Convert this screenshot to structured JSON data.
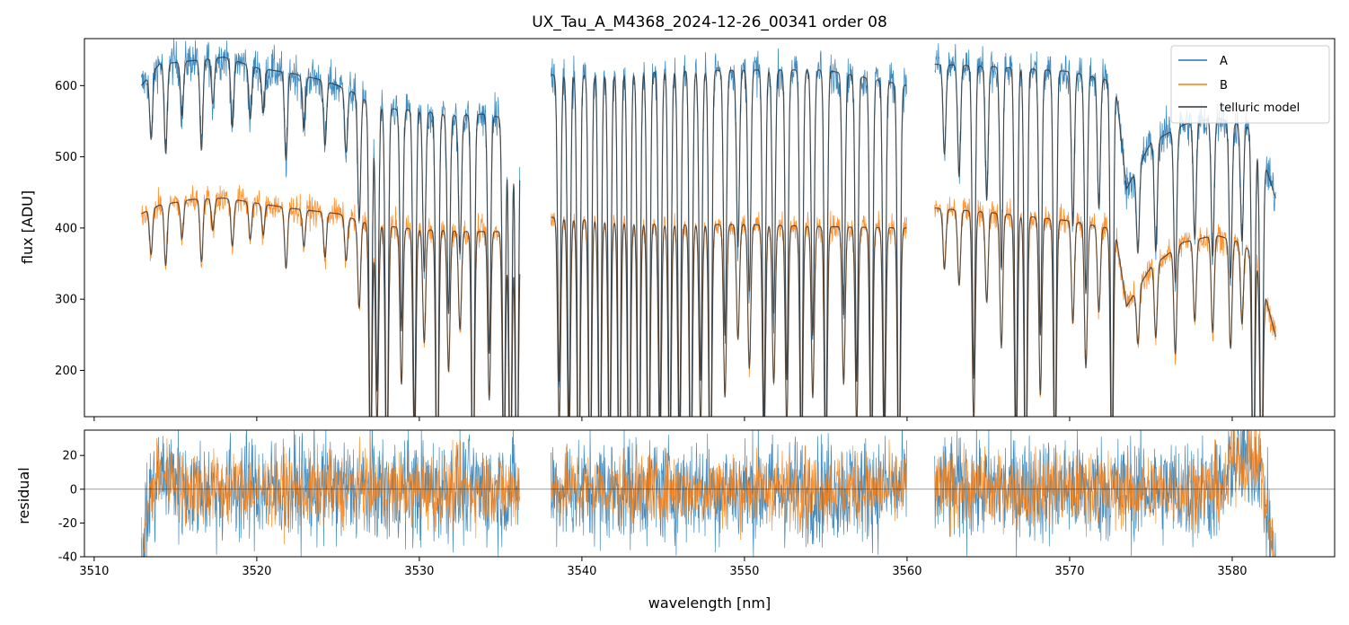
{
  "title": "UX_Tau_A_M4368_2024-12-26_00341  order 08",
  "colors": {
    "A": "#1f77b4",
    "B": "#ff7f0e",
    "telluric": "#333333"
  },
  "chart_data": [
    {
      "type": "line",
      "panel": "top",
      "title": "UX_Tau_A_M4368_2024-12-26_00341  order 08",
      "xlabel": "",
      "ylabel": "flux [ADU]",
      "xlim": [
        3509.4,
        3586.3
      ],
      "ylim": [
        135,
        666
      ],
      "xticks": [
        3510,
        3520,
        3530,
        3540,
        3550,
        3560,
        3570,
        3580
      ],
      "yticks": [
        200,
        300,
        400,
        500,
        600
      ],
      "x_start": 3512.9,
      "x_end": 3582.7,
      "gaps": [
        [
          3536.2,
          3538.1
        ],
        [
          3560.0,
          3561.7
        ]
      ],
      "legend_position": "top-right",
      "series": [
        {
          "name": "A",
          "color": "#1f77b4",
          "continuum_x": [
            3512.9,
            3514,
            3516,
            3518,
            3520,
            3522,
            3524,
            3525,
            3526,
            3527,
            3528,
            3530,
            3532,
            3534,
            3536.2,
            3538.1,
            3540,
            3545,
            3550,
            3555,
            3560,
            3561.7,
            3565,
            3570,
            3572.8,
            3573.5,
            3575,
            3577,
            3579,
            3580.5,
            3581.2,
            3582,
            3582.7
          ],
          "continuum_y": [
            600,
            630,
            635,
            640,
            625,
            618,
            608,
            600,
            590,
            575,
            568,
            565,
            558,
            560,
            550,
            615,
            615,
            620,
            622,
            622,
            600,
            630,
            627,
            620,
            605,
            455,
            520,
            545,
            555,
            545,
            540,
            490,
            440
          ],
          "noise": 15
        },
        {
          "name": "B",
          "color": "#ff7f0e",
          "continuum_x": [
            3512.9,
            3514,
            3516,
            3518,
            3520,
            3522,
            3525,
            3527,
            3530,
            3533,
            3536.2,
            3538.1,
            3545,
            3550,
            3555,
            3560,
            3561.7,
            3565,
            3570,
            3572.8,
            3573.5,
            3575,
            3577,
            3579,
            3580.5,
            3581.5,
            3582.2,
            3582.7
          ],
          "continuum_y": [
            420,
            432,
            440,
            442,
            435,
            428,
            420,
            405,
            398,
            395,
            395,
            415,
            405,
            405,
            402,
            400,
            428,
            422,
            410,
            398,
            290,
            345,
            380,
            390,
            380,
            360,
            290,
            245
          ],
          "noise": 10
        },
        {
          "name": "telluric model",
          "color": "#333333",
          "linewidth": 1.2,
          "absorption_lines_nm": [
            3513.5,
            3514.4,
            3515.4,
            3516.6,
            3517.3,
            3518.5,
            3519.6,
            3520.4,
            3521.8,
            3522.9,
            3524.2,
            3525.5,
            3526.3,
            3527.0,
            3527.4,
            3528.0,
            3528.9,
            3529.7,
            3530.3,
            3531.1,
            3531.8,
            3532.5,
            3533.3,
            3534.3,
            3535.2,
            3535.6,
            3536.0,
            3538.6,
            3539.2,
            3539.8,
            3540.5,
            3541.1,
            3541.7,
            3542.3,
            3542.9,
            3543.5,
            3544.1,
            3544.8,
            3545.4,
            3546.0,
            3546.7,
            3547.3,
            3547.9,
            3548.8,
            3549.6,
            3550.3,
            3551.2,
            3551.8,
            3552.6,
            3553.5,
            3554.2,
            3555.0,
            3556.1,
            3556.9,
            3557.8,
            3558.6,
            3559.5,
            3562.3,
            3563.2,
            3564.1,
            3564.9,
            3565.8,
            3566.7,
            3567.3,
            3568.2,
            3569.1,
            3570.2,
            3571.0,
            3571.8,
            3572.6,
            3574.2,
            3575.3,
            3576.5,
            3577.7,
            3578.8,
            3579.9,
            3580.6,
            3581.3,
            3581.8
          ],
          "absorption_depths": [
            0.15,
            0.2,
            0.12,
            0.2,
            0.1,
            0.15,
            0.12,
            0.1,
            0.2,
            0.12,
            0.15,
            0.15,
            0.3,
            0.9,
            0.7,
            0.95,
            0.55,
            0.8,
            0.4,
            1.0,
            0.5,
            0.35,
            1.0,
            0.6,
            0.9,
            1.0,
            1.0,
            0.7,
            0.8,
            1.0,
            1.0,
            1.0,
            0.9,
            1.0,
            1.0,
            1.0,
            1.0,
            0.8,
            0.9,
            0.85,
            1.0,
            0.7,
            1.0,
            0.6,
            0.4,
            0.5,
            0.8,
            0.55,
            0.7,
            0.9,
            0.6,
            0.9,
            0.55,
            0.7,
            0.9,
            0.8,
            0.95,
            0.2,
            0.25,
            0.7,
            0.3,
            0.45,
            0.85,
            1.0,
            0.6,
            0.9,
            0.35,
            0.5,
            0.3,
            0.9,
            0.25,
            0.3,
            0.4,
            0.3,
            0.35,
            0.4,
            0.3,
            1.0,
            1.0
          ]
        }
      ]
    },
    {
      "type": "line",
      "panel": "bottom",
      "xlabel": "wavelength [nm]",
      "ylabel": "residual",
      "xlim": [
        3509.4,
        3586.3
      ],
      "ylim": [
        -40,
        35
      ],
      "xticks": [
        3510,
        3520,
        3530,
        3540,
        3550,
        3560,
        3570,
        3580
      ],
      "yticks": [
        20,
        0,
        -20,
        -40
      ],
      "zero_line": 0,
      "series": [
        {
          "name": "A",
          "color": "#1f77b4",
          "scatter": 16
        },
        {
          "name": "B",
          "color": "#ff7f0e",
          "scatter": 11
        }
      ]
    }
  ],
  "legend": [
    {
      "label": "A",
      "color": "#1f77b4"
    },
    {
      "label": "B",
      "color": "#ff7f0e"
    },
    {
      "label": "telluric model",
      "color": "#333333"
    }
  ]
}
